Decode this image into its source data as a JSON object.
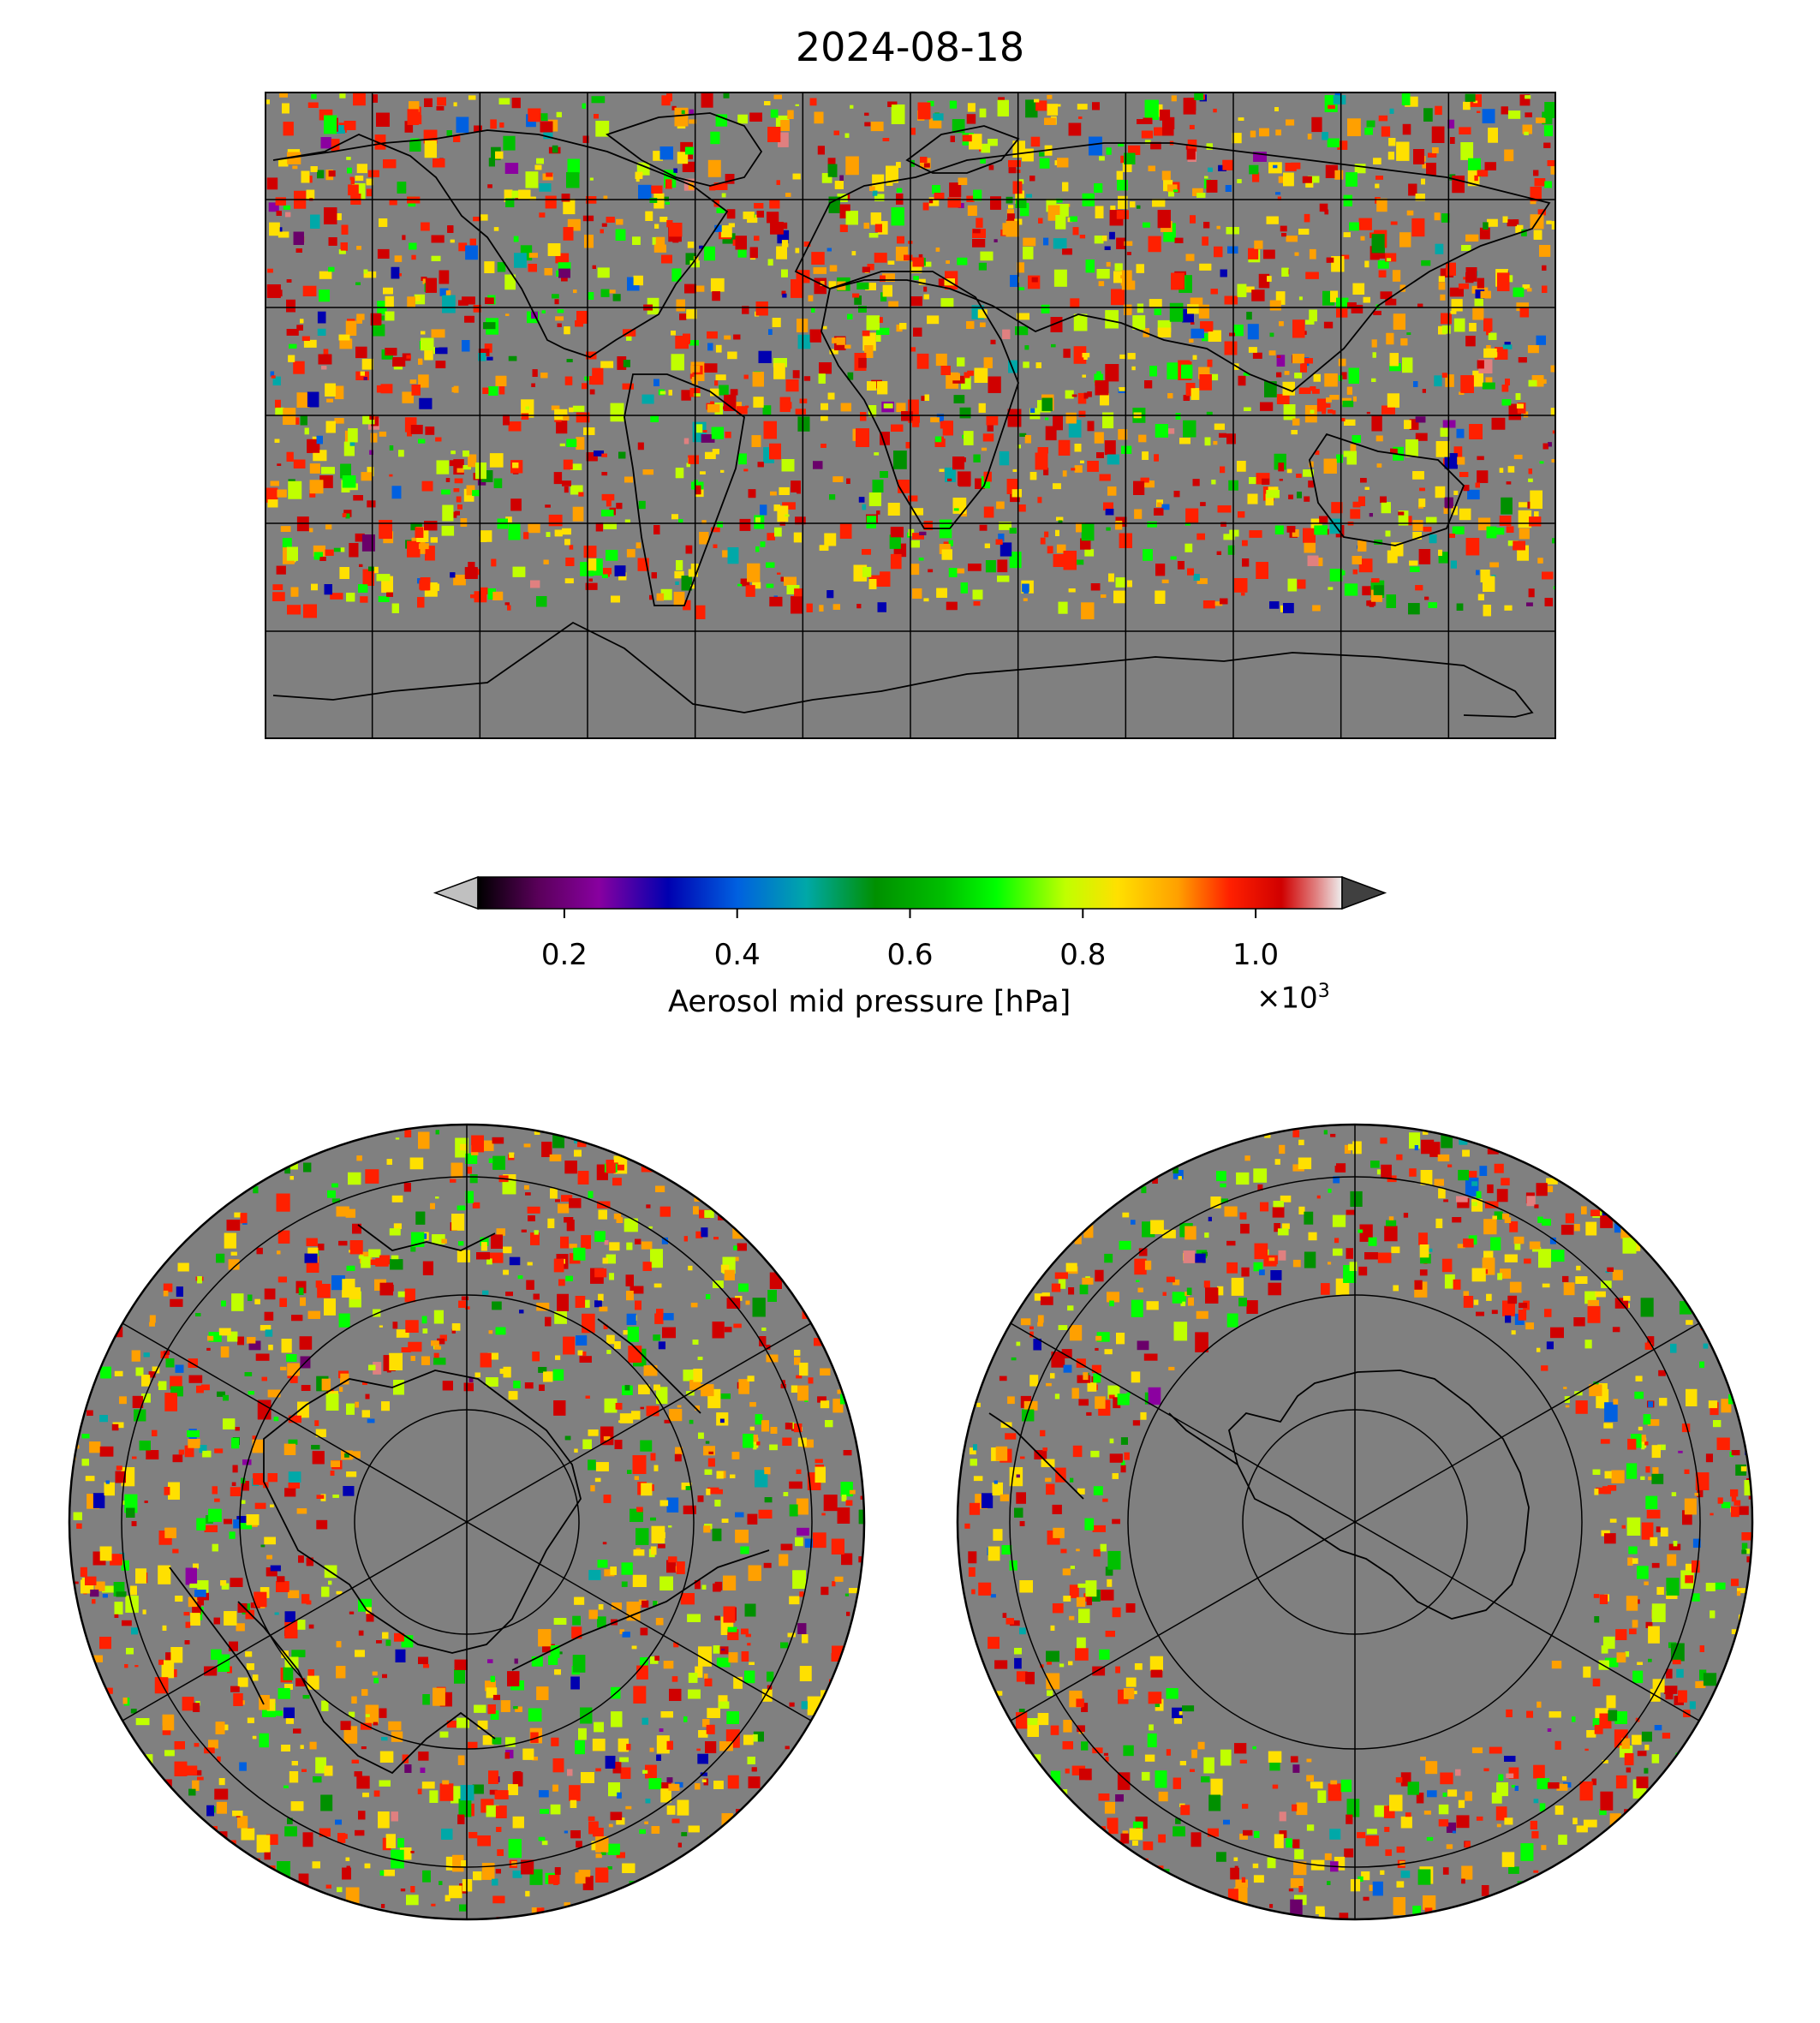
{
  "title": "2024-08-18",
  "colorbar": {
    "label": "Aerosol mid pressure [hPa]",
    "multiplier_base": "×10",
    "multiplier_exp": "3",
    "ticks": [
      "0.2",
      "0.4",
      "0.6",
      "0.8",
      "1.0"
    ],
    "tick_values": [
      0.2,
      0.4,
      0.6,
      0.8,
      1.0
    ],
    "range": [
      0.1,
      1.1
    ],
    "extend": "both",
    "colormap": [
      "#000000",
      "#6a006a",
      "#8b00a0",
      "#0000b0",
      "#0060e0",
      "#00a8a8",
      "#009000",
      "#00c000",
      "#00ff00",
      "#c0ff00",
      "#ffe000",
      "#ffa000",
      "#ff2000",
      "#d00000",
      "#e08080",
      "#e0e0e0"
    ],
    "under_color": "#c0c0c0",
    "over_color": "#404040"
  },
  "panels": [
    {
      "name": "global",
      "projection": "plate-carree",
      "grid_lon_step_deg": 30,
      "grid_lat_step_deg": 30
    },
    {
      "name": "north-polar",
      "projection": "north-polar-stereographic"
    },
    {
      "name": "south-polar",
      "projection": "south-polar-stereographic"
    }
  ],
  "missing_color": "#808080"
}
